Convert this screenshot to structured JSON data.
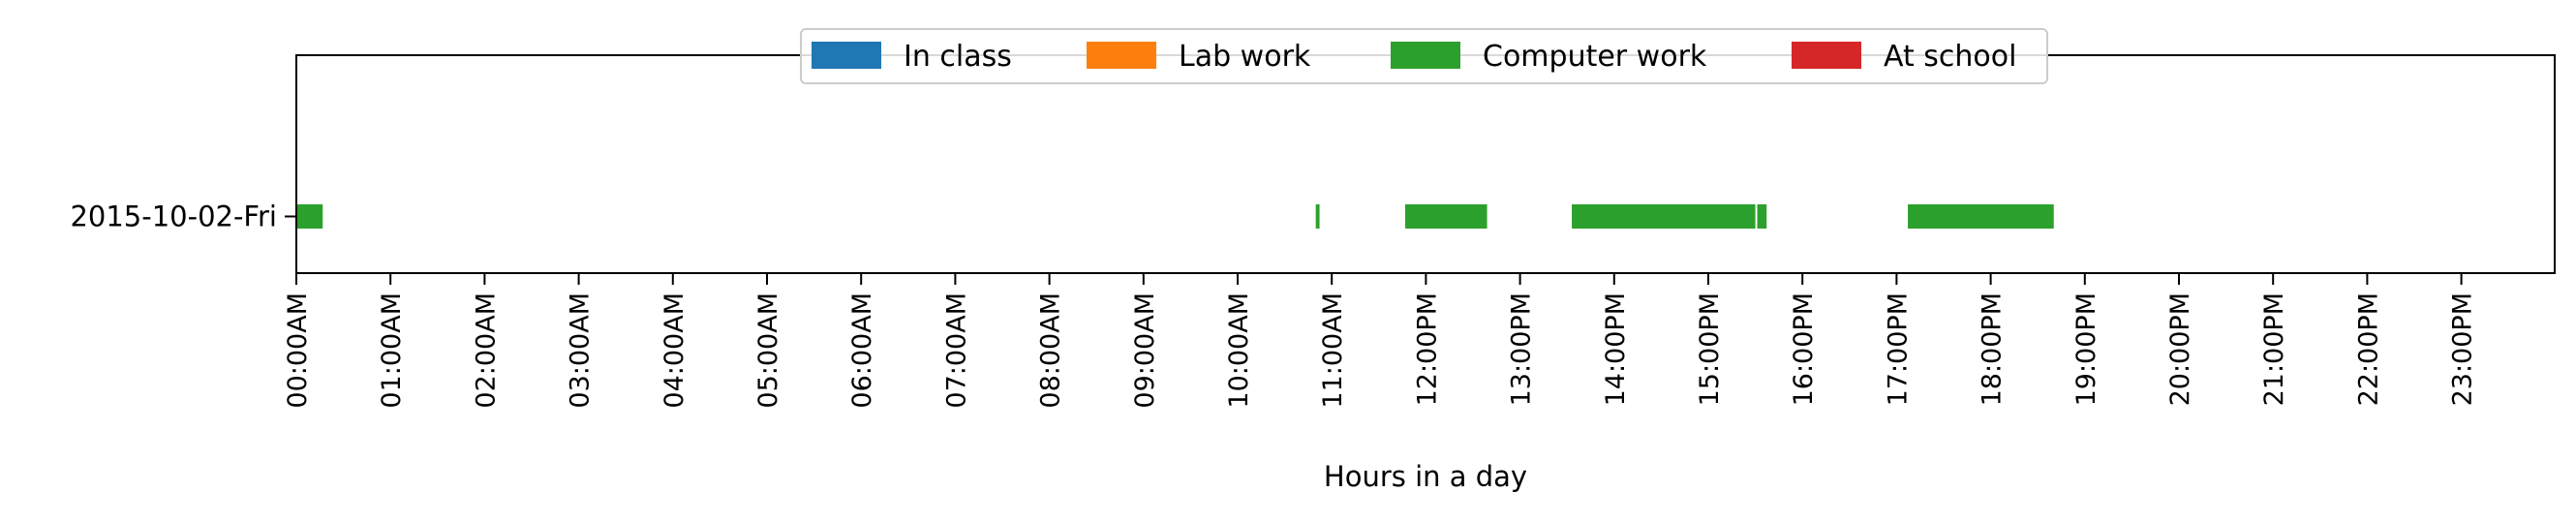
{
  "chart_data": {
    "type": "bar",
    "orientation": "horizontal-timeline",
    "title": "",
    "xlabel": "Hours in a day",
    "ylabel": "",
    "xlim": [
      0,
      24
    ],
    "grid": false,
    "legend_placement": "top-center",
    "categories": [
      "2015-10-02-Fri"
    ],
    "x_ticks": [
      "00:00AM",
      "01:00AM",
      "02:00AM",
      "03:00AM",
      "04:00AM",
      "05:00AM",
      "06:00AM",
      "07:00AM",
      "08:00AM",
      "09:00AM",
      "10:00AM",
      "11:00AM",
      "12:00PM",
      "13:00PM",
      "14:00PM",
      "15:00PM",
      "16:00PM",
      "17:00PM",
      "18:00PM",
      "19:00PM",
      "20:00PM",
      "21:00PM",
      "22:00PM",
      "23:00PM"
    ],
    "series": [
      {
        "name": "In class",
        "color": "#1f77b4",
        "intervals": []
      },
      {
        "name": "Lab work",
        "color": "#ff7f0e",
        "intervals": []
      },
      {
        "name": "Computer work",
        "color": "#2ca02c",
        "intervals": [
          {
            "category": "2015-10-02-Fri",
            "start": 0.0,
            "end": 0.28
          },
          {
            "category": "2015-10-02-Fri",
            "start": 10.83,
            "end": 10.87
          },
          {
            "category": "2015-10-02-Fri",
            "start": 11.78,
            "end": 12.65
          },
          {
            "category": "2015-10-02-Fri",
            "start": 13.55,
            "end": 15.5
          },
          {
            "category": "2015-10-02-Fri",
            "start": 15.52,
            "end": 15.62
          },
          {
            "category": "2015-10-02-Fri",
            "start": 17.12,
            "end": 18.67
          }
        ]
      },
      {
        "name": "At school",
        "color": "#d62728",
        "intervals": []
      }
    ]
  }
}
